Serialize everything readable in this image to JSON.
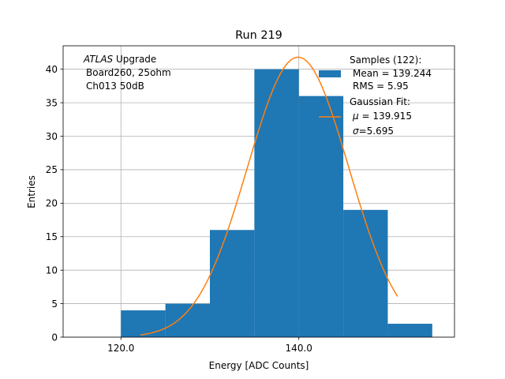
{
  "chart_data": {
    "type": "bar",
    "title": "Run 219",
    "xlabel": "Energy [ADC Counts]",
    "ylabel": "Entries",
    "xlim": [
      113.5,
      157.5
    ],
    "ylim": [
      0,
      43.5
    ],
    "grid": true,
    "x_ticks": [
      {
        "value": 120,
        "label": "120.0"
      },
      {
        "value": 140,
        "label": "140.0"
      }
    ],
    "y_ticks": [
      0,
      5,
      10,
      15,
      20,
      25,
      30,
      35,
      40
    ],
    "bins": [
      {
        "start": 120,
        "end": 125,
        "count": 4
      },
      {
        "start": 125,
        "end": 130,
        "count": 5
      },
      {
        "start": 130,
        "end": 135,
        "count": 16
      },
      {
        "start": 135,
        "end": 140,
        "count": 40
      },
      {
        "start": 140,
        "end": 145,
        "count": 36
      },
      {
        "start": 145,
        "end": 150,
        "count": 19
      },
      {
        "start": 150,
        "end": 155,
        "count": 2
      }
    ],
    "fit": {
      "type": "gaussian",
      "mu": 139.915,
      "sigma": 5.695,
      "amplitude": 41.8,
      "x_range": [
        122.2,
        151.1
      ]
    },
    "colors": {
      "bars": "#1f77b4",
      "fit": "#ff7f0e",
      "grid": "#b0b0b0"
    },
    "annotation": {
      "line1_italic": "ATLAS",
      "line1_rest": " Upgrade",
      "line2": "Board260, 25ohm",
      "line3": "Ch013 50dB"
    },
    "legend": {
      "placement": "top-right",
      "samples_title": "Samples (122):",
      "samples_mean": "Mean = 139.244",
      "samples_rms": "RMS = 5.95",
      "fit_title": "Gaussian Fit:",
      "fit_mu_symbol": "μ",
      "fit_mu_value": " = 139.915",
      "fit_sigma_symbol": "σ",
      "fit_sigma_value": "=5.695"
    }
  }
}
